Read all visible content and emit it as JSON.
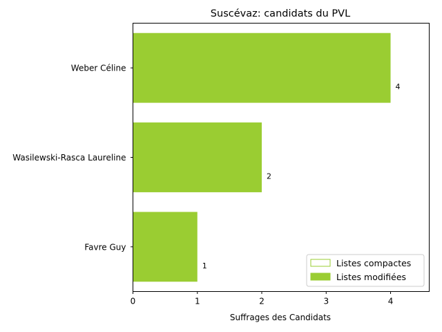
{
  "chart_data": {
    "type": "bar",
    "orientation": "horizontal",
    "title": "Suscévaz: candidats du PVL",
    "xlabel": "Suffrages des Candidats",
    "ylabel": "",
    "categories": [
      "Weber Céline",
      "Wasilewski-Rasca Laureline",
      "Favre Guy"
    ],
    "series": [
      {
        "name": "Listes compactes",
        "values": [
          0,
          0,
          0
        ],
        "style": "outline"
      },
      {
        "name": "Listes modifiées",
        "values": [
          4,
          2,
          1
        ],
        "style": "filled"
      }
    ],
    "value_labels": [
      "4",
      "2",
      "1"
    ],
    "xlim": [
      0,
      4.6
    ],
    "xticks": [
      0,
      1,
      2,
      3,
      4
    ],
    "grid": false,
    "legend_position": "lower-right",
    "colors": {
      "bar": "#9acd32",
      "axis": "#000000"
    }
  }
}
